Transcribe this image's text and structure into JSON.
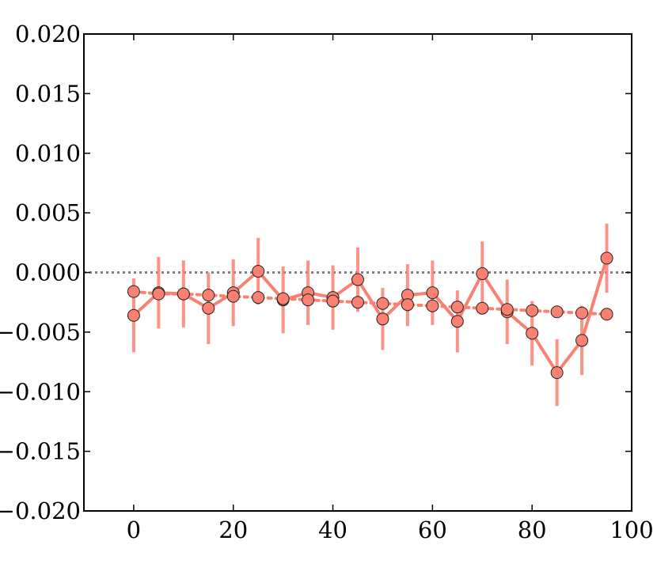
{
  "chart_data": {
    "type": "line",
    "title": "",
    "xlabel": "",
    "ylabel": "",
    "xlim": [
      -10,
      100
    ],
    "ylim": [
      -0.02,
      0.02
    ],
    "x_ticks": [
      0,
      20,
      40,
      60,
      80,
      100
    ],
    "x_tick_labels": [
      "0",
      "20",
      "40",
      "60",
      "80",
      "100"
    ],
    "y_ticks": [
      0.02,
      0.015,
      0.01,
      0.005,
      0.0,
      -0.005,
      -0.01,
      -0.015,
      -0.02
    ],
    "y_tick_labels": [
      "0.020",
      "0.015",
      "0.010",
      "0.005",
      "0.000",
      "−0.005",
      "−0.010",
      "−0.015",
      "−0.020"
    ],
    "grid": false,
    "legend": "none",
    "reference_line": {
      "y": 0.0,
      "style": "dotted",
      "color": "#808080"
    },
    "x": [
      0,
      5,
      10,
      15,
      20,
      25,
      30,
      35,
      40,
      45,
      50,
      55,
      60,
      65,
      70,
      75,
      80,
      85,
      90,
      95
    ],
    "series": [
      {
        "style": "solid",
        "color": "#fa8072",
        "values": [
          -0.0036,
          -0.0017,
          -0.0018,
          -0.003,
          -0.0017,
          0.0001,
          -0.0023,
          -0.0017,
          -0.0021,
          -0.0006,
          -0.0039,
          -0.0019,
          -0.0017,
          -0.0041,
          -0.0001,
          -0.0033,
          -0.0051,
          -0.0084,
          -0.0057,
          0.0012
        ],
        "error": [
          0.0031,
          0.003,
          0.0028,
          0.003,
          0.0028,
          0.0028,
          0.0028,
          0.0027,
          0.0027,
          0.0027,
          0.0026,
          0.0026,
          0.0027,
          0.0026,
          0.0027,
          0.0027,
          0.0027,
          0.0028,
          0.0029,
          0.0029
        ]
      },
      {
        "style": "dotted",
        "color": "#fa8072",
        "values": [
          -0.0016,
          -0.0018,
          -0.0018,
          -0.0019,
          -0.002,
          -0.0021,
          -0.0022,
          -0.0023,
          -0.0024,
          -0.0025,
          -0.0026,
          -0.0027,
          -0.0028,
          -0.0029,
          -0.003,
          -0.0031,
          -0.0032,
          -0.0033,
          -0.0034,
          -0.0035
        ]
      }
    ]
  }
}
